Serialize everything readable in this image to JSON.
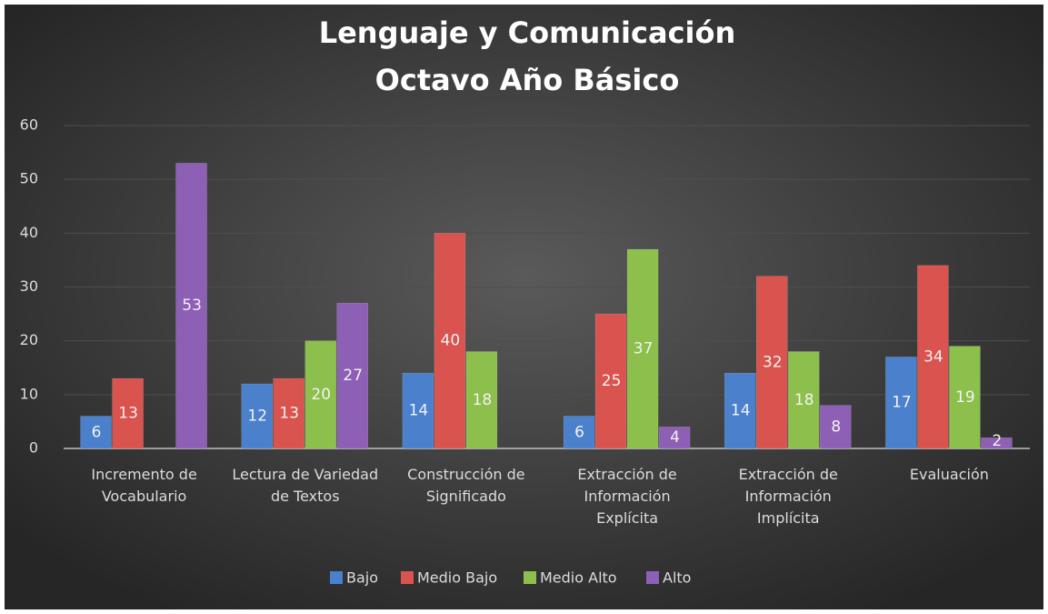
{
  "chart_data": {
    "type": "bar",
    "title": "Lenguaje y Comunicación",
    "subtitle": "Octavo Año Básico",
    "categories": [
      "Incremento de Vocabulario",
      "Lectura de Variedad de Textos",
      "Construcción de Significado",
      "Extracción de Información Explícita",
      "Extracción de Información Implícita",
      "Evaluación"
    ],
    "series": [
      {
        "name": "Bajo",
        "color": "#4a80cc",
        "values": [
          6,
          12,
          14,
          6,
          14,
          17
        ]
      },
      {
        "name": "Medio Bajo",
        "color": "#d9534f",
        "values": [
          13,
          13,
          40,
          25,
          32,
          34
        ]
      },
      {
        "name": "Medio Alto",
        "color": "#8cbf4b",
        "values": [
          null,
          20,
          18,
          37,
          18,
          19
        ]
      },
      {
        "name": "Alto",
        "color": "#8d5fb5",
        "values": [
          53,
          27,
          null,
          4,
          8,
          2
        ]
      }
    ],
    "ylim": [
      0,
      60
    ],
    "yticks": [
      0,
      10,
      20,
      30,
      40,
      50,
      60
    ],
    "grid": true,
    "legend": "bottom"
  }
}
